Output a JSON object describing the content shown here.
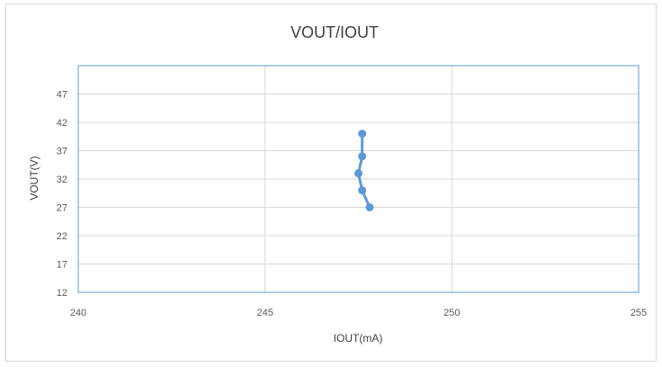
{
  "chart_data": {
    "type": "scatter",
    "title": "VOUT/IOUT",
    "xlabel": "IOUT(mA)",
    "ylabel": "VOUT(V)",
    "xlim": [
      240,
      255
    ],
    "ylim": [
      12,
      52
    ],
    "xticks": [
      240,
      245,
      250,
      255
    ],
    "yticks": [
      12,
      17,
      22,
      27,
      32,
      37,
      42,
      47
    ],
    "grid": true,
    "legend": "none",
    "series": [
      {
        "color": "#5b9bd5",
        "points": [
          {
            "x": 247.8,
            "y": 27
          },
          {
            "x": 247.6,
            "y": 30
          },
          {
            "x": 247.5,
            "y": 33
          },
          {
            "x": 247.6,
            "y": 36
          },
          {
            "x": 247.6,
            "y": 40
          }
        ]
      }
    ],
    "plot_border_color": "#5b9bd5",
    "grid_color": "#d9d9d9"
  }
}
